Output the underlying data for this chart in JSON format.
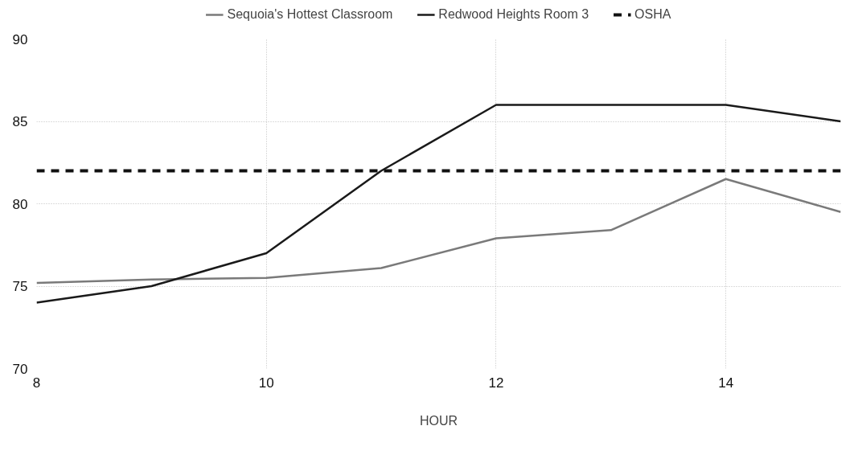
{
  "chart_data": {
    "type": "line",
    "xlabel": "HOUR",
    "x": [
      8,
      9,
      10,
      11,
      12,
      13,
      14,
      15
    ],
    "series": [
      {
        "name": "Sequoia's Hottest Classroom",
        "color": "#7a7a7a",
        "values": [
          75.2,
          75.4,
          75.5,
          76.1,
          77.9,
          78.4,
          81.5,
          79.5
        ]
      },
      {
        "name": "Redwood Heights Room 3",
        "color": "#1a1a1a",
        "values": [
          74,
          75,
          77,
          82,
          86,
          86,
          86,
          85
        ]
      },
      {
        "name": "OSHA",
        "color": "#111111",
        "line_style": "dashed",
        "values": [
          82,
          82,
          82,
          82,
          82,
          82,
          82,
          82
        ]
      }
    ],
    "xlim": [
      8,
      15
    ],
    "ylim": [
      70,
      90
    ],
    "xticks": [
      8,
      10,
      12,
      14
    ],
    "yticks": [
      70,
      75,
      80,
      85,
      90
    ],
    "grid": true,
    "legend": "top",
    "line_style": "solid",
    "marker": "none"
  }
}
